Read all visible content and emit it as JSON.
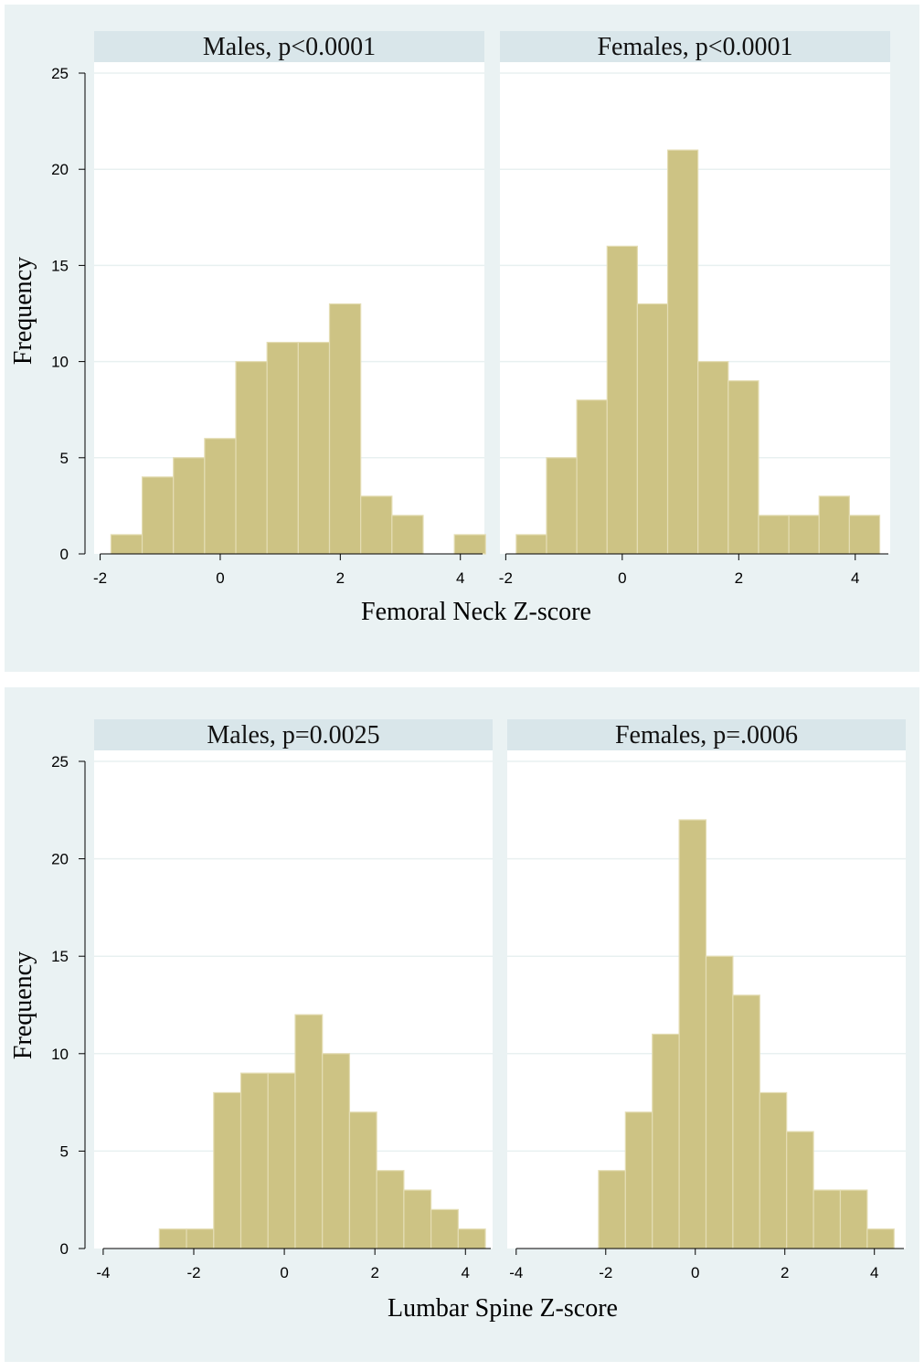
{
  "figure": {
    "panel_bg": "#eaf2f3",
    "bar_fill": "#cdc384",
    "bar_stroke": "#e4ddb4",
    "strip_bg": "#d9e6ea",
    "grid_color": "#e8f0f0"
  },
  "chart_data": [
    {
      "type": "bar",
      "title": "",
      "xlabel": "Femoral Neck Z-score",
      "ylabel": "Frequency",
      "ylim": [
        0,
        25
      ],
      "yticks": [
        0,
        5,
        10,
        15,
        20,
        25
      ],
      "xlim": [
        -2,
        4
      ],
      "xticks": [
        -2,
        0,
        2,
        4
      ],
      "grid": true,
      "bin_width": 0.52,
      "facets": [
        {
          "label": "Males, p<0.0001",
          "xlim": [
            -2.1,
            4.4
          ],
          "bin_starts": [
            -1.82,
            -1.3,
            -0.78,
            -0.26,
            0.26,
            0.78,
            1.3,
            1.82,
            2.34,
            2.86,
            3.38,
            3.9
          ],
          "values": [
            1,
            4,
            5,
            6,
            10,
            11,
            11,
            13,
            3,
            2,
            0,
            1
          ]
        },
        {
          "label": "Females, p<0.0001",
          "xlim": [
            -2.1,
            4.6
          ],
          "bin_starts": [
            -1.82,
            -1.3,
            -0.78,
            -0.26,
            0.26,
            0.78,
            1.3,
            1.82,
            2.34,
            2.86,
            3.38,
            3.9
          ],
          "values": [
            1,
            5,
            8,
            16,
            13,
            21,
            10,
            9,
            2,
            2,
            3,
            2
          ]
        }
      ]
    },
    {
      "type": "bar",
      "title": "",
      "xlabel": "Lumbar Spine Z-score",
      "ylabel": "Frequency",
      "ylim": [
        0,
        25
      ],
      "yticks": [
        0,
        5,
        10,
        15,
        20,
        25
      ],
      "xlim": [
        -4,
        4
      ],
      "xticks": [
        -4,
        -2,
        0,
        2,
        4
      ],
      "grid": true,
      "bin_width": 0.6,
      "facets": [
        {
          "label": "Males, p=0.0025",
          "xlim": [
            -4.2,
            4.6
          ],
          "bin_starts": [
            -2.76,
            -2.16,
            -1.56,
            -0.96,
            -0.36,
            0.24,
            0.84,
            1.44,
            2.04,
            2.64,
            3.24,
            3.84
          ],
          "values": [
            1,
            1,
            8,
            9,
            9,
            12,
            10,
            7,
            4,
            3,
            2,
            1
          ]
        },
        {
          "label": "Females, p=.0006",
          "xlim": [
            -4.2,
            4.7
          ],
          "bin_starts": [
            -2.16,
            -1.56,
            -0.96,
            -0.36,
            0.24,
            0.84,
            1.44,
            2.04,
            2.64,
            3.24,
            3.84
          ],
          "values": [
            4,
            7,
            11,
            22,
            15,
            13,
            8,
            6,
            3,
            3,
            1
          ]
        }
      ]
    }
  ]
}
